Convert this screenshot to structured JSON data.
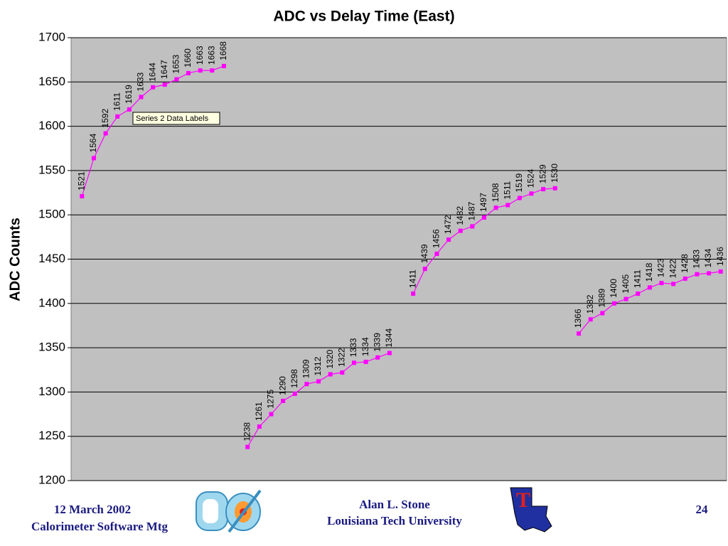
{
  "chart_data": {
    "type": "line",
    "title": "ADC vs Delay Time (East)",
    "y_label": "ADC Counts",
    "tooltip": "Series 2 Data Labels",
    "color": "#ff00ff",
    "grid": true,
    "ylim": [
      1200,
      1700
    ],
    "yticks": [
      1200,
      1250,
      1300,
      1350,
      1400,
      1450,
      1500,
      1550,
      1600,
      1650,
      1700
    ],
    "categories": [
      null,
      null,
      null,
      null,
      null,
      null,
      null,
      null,
      null,
      null,
      null,
      null,
      null,
      null,
      null,
      null,
      null,
      null,
      null,
      null,
      null,
      null,
      null,
      null,
      null,
      null,
      null,
      null,
      null,
      null,
      null,
      null,
      null,
      null,
      null,
      null,
      null,
      null,
      null,
      null,
      null,
      null,
      null,
      null,
      null,
      null,
      null,
      null,
      null,
      null,
      null,
      null,
      null,
      null,
      null
    ],
    "values": [
      1521,
      1564,
      1592,
      1611,
      1619,
      1633,
      1644,
      1647,
      1653,
      1660,
      1663,
      1663,
      1668,
      null,
      1238,
      1261,
      1275,
      1290,
      1298,
      1309,
      1312,
      1320,
      1322,
      1333,
      1334,
      1339,
      1344,
      null,
      1411,
      1439,
      1456,
      1472,
      1482,
      1487,
      1497,
      1508,
      1511,
      1519,
      1524,
      1529,
      1530,
      null,
      1366,
      1382,
      1389,
      1400,
      1405,
      1411,
      1418,
      1423,
      1422,
      1428,
      1433,
      1434,
      1436
    ]
  },
  "footer": {
    "date": "12 March 2002",
    "meeting": "Calorimeter Software Mtg",
    "author": "Alan L. Stone",
    "institution": "Louisiana Tech University",
    "page": "24"
  }
}
